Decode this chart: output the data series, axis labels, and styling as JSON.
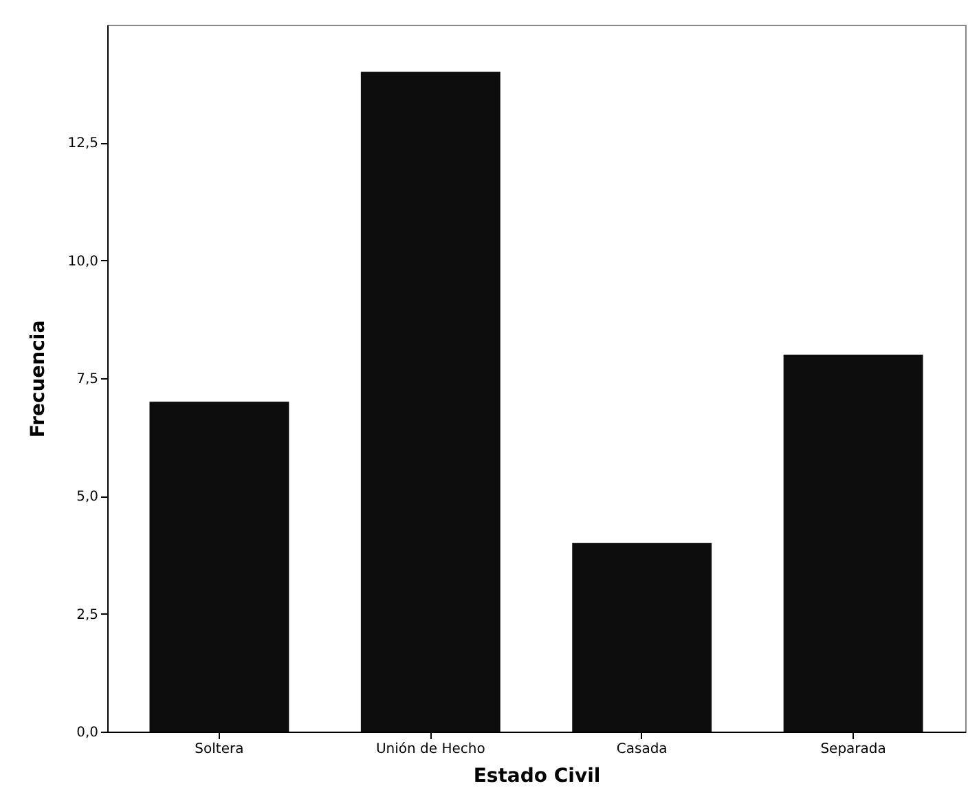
{
  "chart_data": {
    "type": "bar",
    "xlabel": "Estado Civil",
    "ylabel": "Frecuencia",
    "categories": [
      "Soltera",
      "Unión de Hecho",
      "Casada",
      "Separada"
    ],
    "values": [
      7,
      14,
      4,
      8
    ],
    "color": "#0d0d0d",
    "ylim": [
      0,
      15
    ],
    "yticks": [
      {
        "value": 0,
        "label": "0,0"
      },
      {
        "value": 2.5,
        "label": "2,5"
      },
      {
        "value": 5,
        "label": "5,0"
      },
      {
        "value": 7.5,
        "label": "7,5"
      },
      {
        "value": 10,
        "label": "10,0"
      },
      {
        "value": 12.5,
        "label": "12,5"
      }
    ],
    "grid": false
  }
}
